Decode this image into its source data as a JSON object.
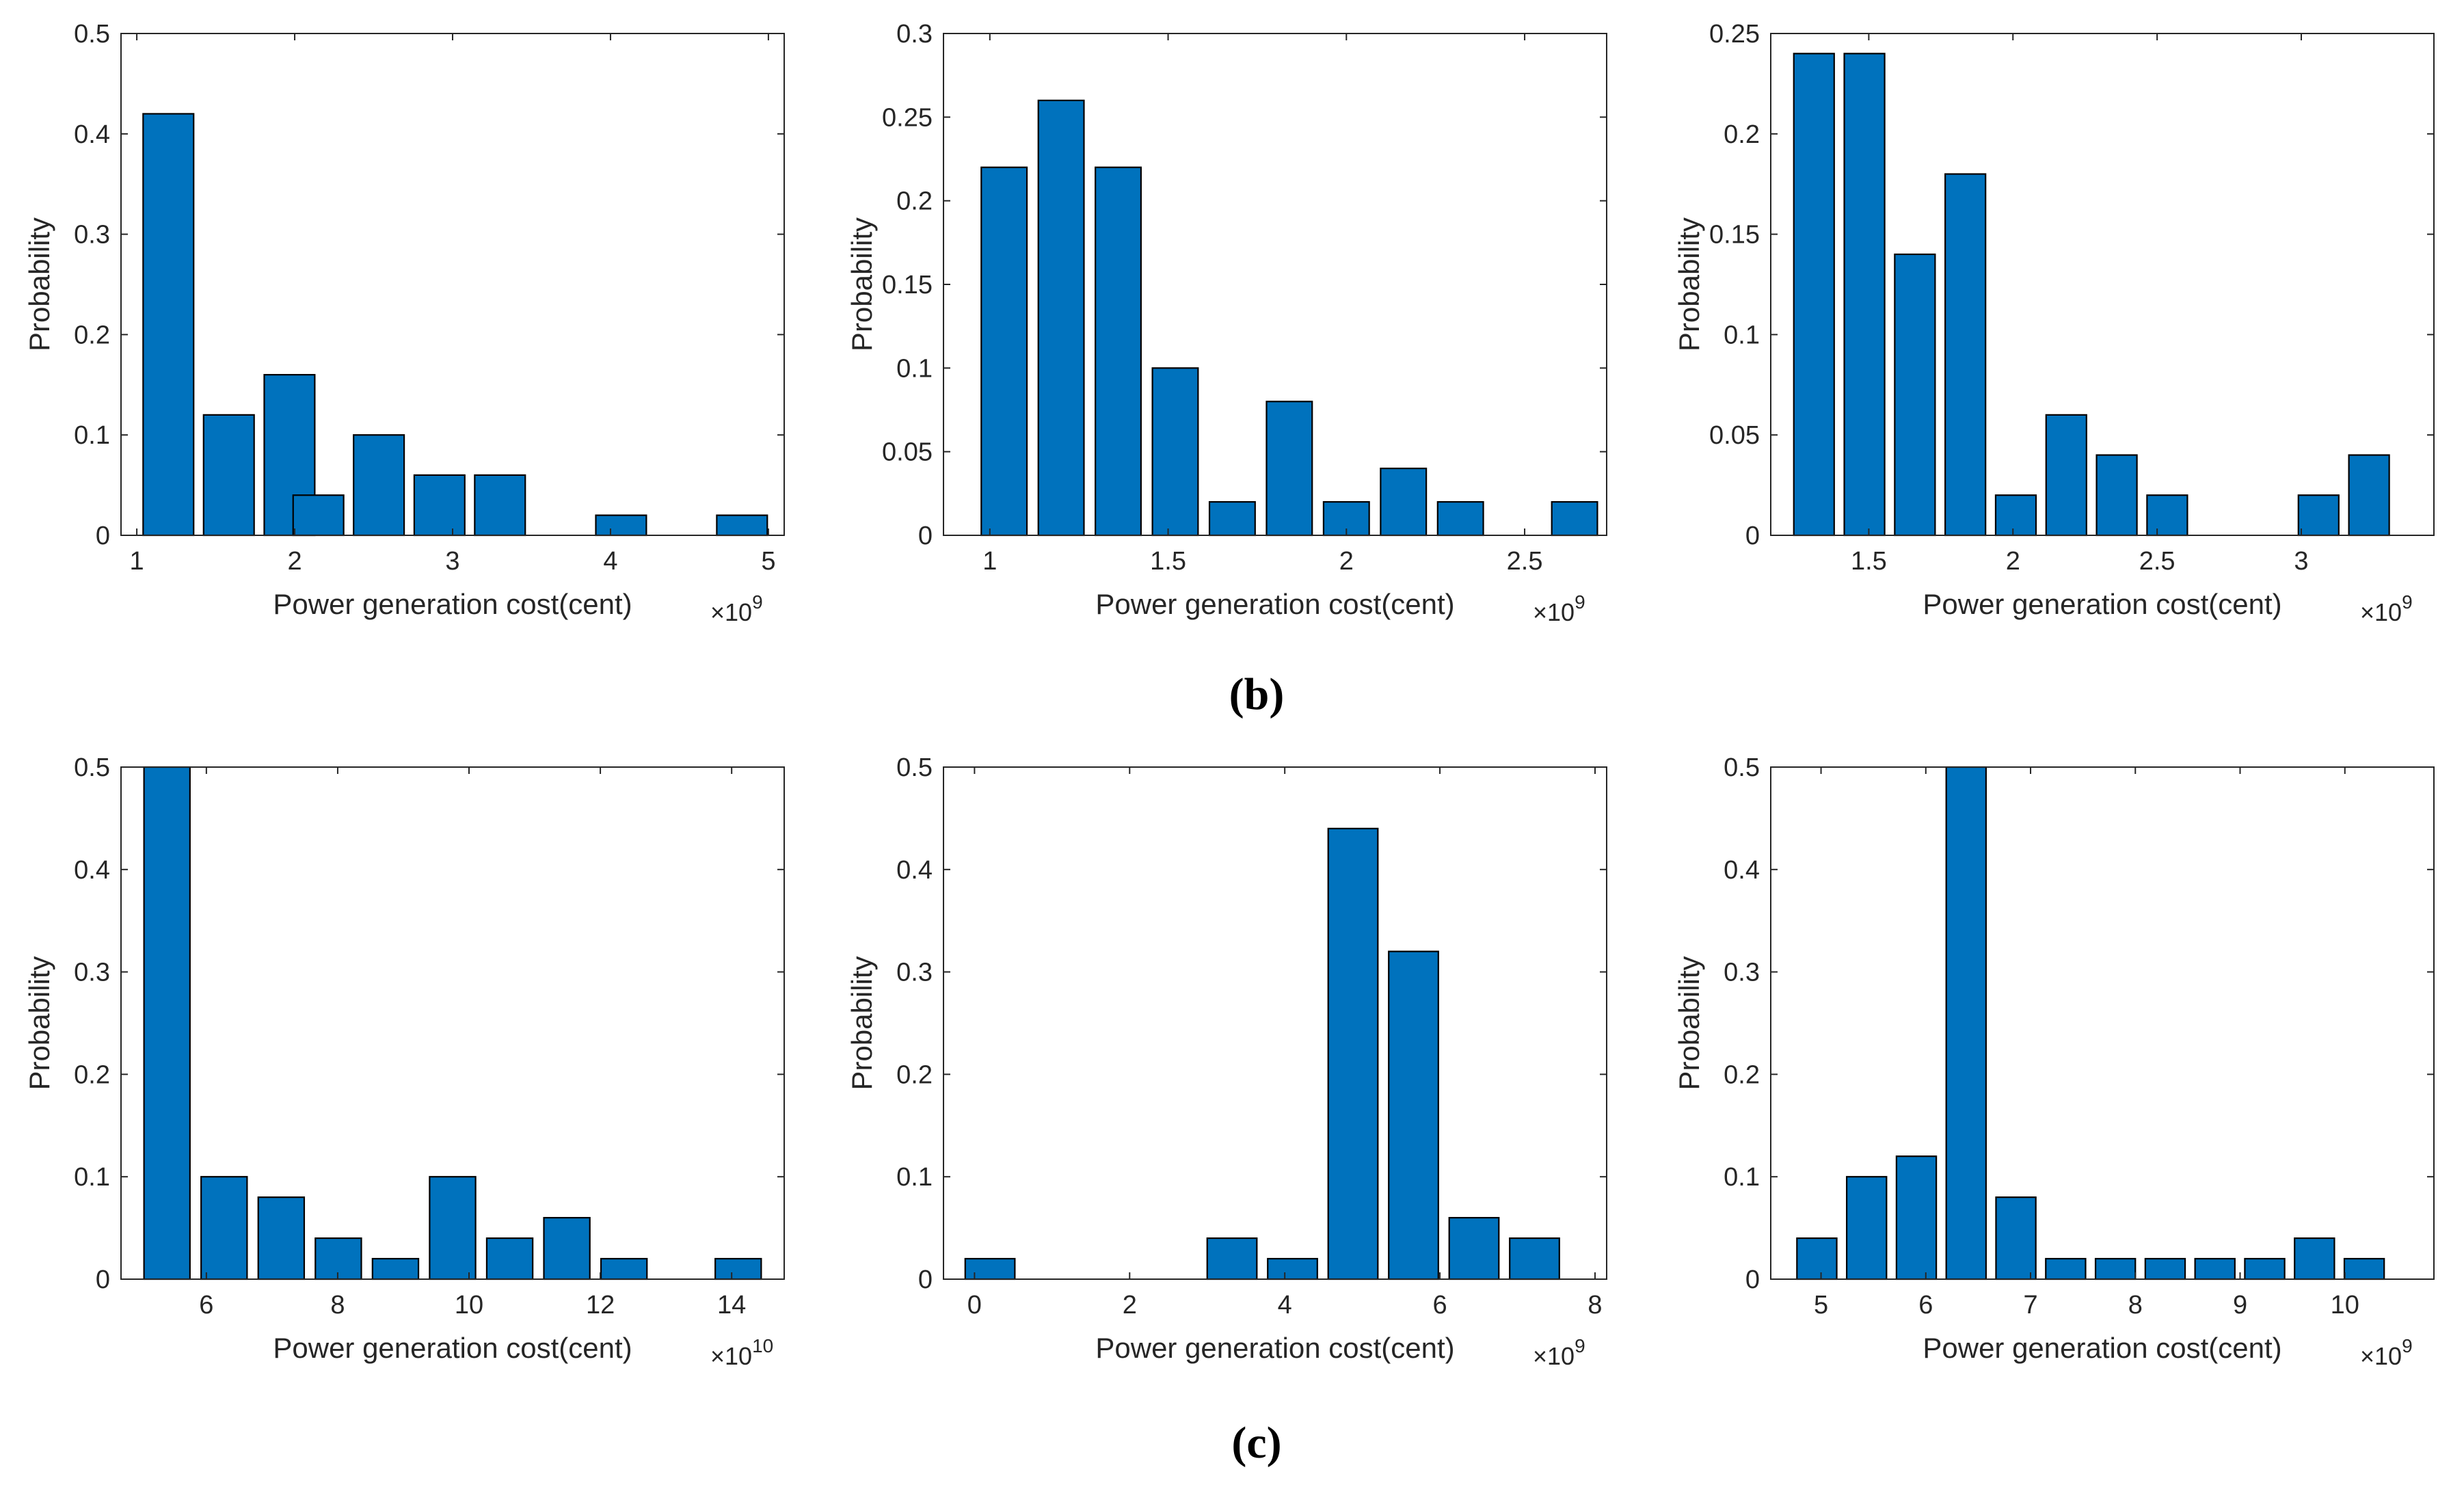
{
  "figure": {
    "panel_labels": [
      "(b)",
      "(c)"
    ]
  },
  "colors": {
    "bar": "#0072BD",
    "bar_edge": "#000000",
    "axis": "#262626"
  },
  "chart_data": [
    {
      "type": "bar",
      "panel": "(b)",
      "position": "left",
      "title": "",
      "xlabel": "Power generation cost(cent)",
      "ylabel": "Probability",
      "x_multiplier": "×10",
      "x_exponent": "9",
      "xlim": [
        0.9,
        5.1
      ],
      "ylim": [
        0,
        0.5
      ],
      "xticks": [
        1,
        2,
        3,
        4,
        5
      ],
      "xtick_labels": [
        "1",
        "2",
        "3",
        "4",
        "5"
      ],
      "yticks": [
        0,
        0.1,
        0.2,
        0.3,
        0.4,
        0.5
      ],
      "ytick_labels": [
        "0",
        "0.1",
        "0.2",
        "0.3",
        "0.4",
        "0.5"
      ],
      "bar_width": 0.32,
      "x": [
        1.2,
        1.583,
        1.967,
        2.15,
        2.533,
        2.917,
        3.3,
        3.683,
        4.067,
        4.45,
        4.833
      ],
      "values": [
        0.42,
        0.12,
        0.16,
        0.04,
        0.1,
        0.06,
        0.06,
        0.0,
        0.02,
        0.0,
        0.02
      ]
    },
    {
      "type": "bar",
      "panel": "(b)",
      "position": "middle",
      "title": "",
      "xlabel": "Power generation cost(cent)",
      "ylabel": "Probability",
      "x_multiplier": "×10",
      "x_exponent": "9",
      "xlim": [
        0.87,
        2.73
      ],
      "ylim": [
        0,
        0.3
      ],
      "xticks": [
        1,
        1.5,
        2,
        2.5
      ],
      "xtick_labels": [
        "1",
        "1.5",
        "2",
        "2.5"
      ],
      "yticks": [
        0,
        0.05,
        0.1,
        0.15,
        0.2,
        0.25,
        0.3
      ],
      "ytick_labels": [
        "0",
        "0.05",
        "0.1",
        "0.15",
        "0.2",
        "0.25",
        "0.3"
      ],
      "bar_width": 0.128,
      "x": [
        1.04,
        1.2,
        1.36,
        1.52,
        1.68,
        1.84,
        2.0,
        2.16,
        2.32,
        2.48,
        2.64
      ],
      "values": [
        0.22,
        0.26,
        0.22,
        0.1,
        0.02,
        0.08,
        0.02,
        0.04,
        0.02,
        0.0,
        0.02
      ]
    },
    {
      "type": "bar",
      "panel": "(b)",
      "position": "right",
      "title": "",
      "xlabel": "Power generation cost(cent)",
      "ylabel": "Probability",
      "x_multiplier": "×10",
      "x_exponent": "9",
      "xlim": [
        1.16,
        3.46
      ],
      "ylim": [
        0,
        0.25
      ],
      "xticks": [
        1.5,
        2,
        2.5,
        3
      ],
      "xtick_labels": [
        "1.5",
        "2",
        "2.5",
        "3"
      ],
      "yticks": [
        0,
        0.05,
        0.1,
        0.15,
        0.2,
        0.25
      ],
      "ytick_labels": [
        "0",
        "0.05",
        "0.1",
        "0.15",
        "0.2",
        "0.25"
      ],
      "bar_width": 0.14,
      "x": [
        1.31,
        1.485,
        1.66,
        1.835,
        2.01,
        2.185,
        2.36,
        2.535,
        2.71,
        2.885,
        3.06,
        3.235
      ],
      "values": [
        0.24,
        0.24,
        0.14,
        0.18,
        0.02,
        0.06,
        0.04,
        0.02,
        0.0,
        0.0,
        0.02,
        0.04
      ]
    },
    {
      "type": "bar",
      "panel": "(c)",
      "position": "left",
      "title": "",
      "xlabel": "Power generation cost(cent)",
      "ylabel": "Probability",
      "x_multiplier": "×10",
      "x_exponent": "10",
      "xlim": [
        4.7,
        14.8
      ],
      "ylim": [
        0,
        0.5
      ],
      "xticks": [
        6,
        8,
        10,
        12,
        14
      ],
      "xtick_labels": [
        "6",
        "8",
        "10",
        "12",
        "14"
      ],
      "yticks": [
        0,
        0.1,
        0.2,
        0.3,
        0.4,
        0.5
      ],
      "ytick_labels": [
        "0",
        "0.1",
        "0.2",
        "0.3",
        "0.4",
        "0.5"
      ],
      "bar_width": 0.7,
      "x": [
        5.4,
        6.27,
        7.14,
        8.01,
        8.88,
        9.75,
        10.62,
        11.49,
        12.36,
        13.23,
        14.1
      ],
      "values": [
        0.5,
        0.1,
        0.08,
        0.04,
        0.02,
        0.1,
        0.04,
        0.06,
        0.02,
        0.0,
        0.02
      ]
    },
    {
      "type": "bar",
      "panel": "(c)",
      "position": "middle",
      "title": "",
      "xlabel": "Power generation cost(cent)",
      "ylabel": "Probability",
      "x_multiplier": "×10",
      "x_exponent": "9",
      "xlim": [
        -0.4,
        8.15
      ],
      "ylim": [
        0,
        0.5
      ],
      "xticks": [
        0,
        2,
        4,
        6,
        8
      ],
      "xtick_labels": [
        "0",
        "2",
        "4",
        "6",
        "8"
      ],
      "yticks": [
        0,
        0.1,
        0.2,
        0.3,
        0.4,
        0.5
      ],
      "ytick_labels": [
        "0",
        "0.1",
        "0.2",
        "0.3",
        "0.4",
        "0.5"
      ],
      "bar_width": 0.64,
      "x": [
        0.2,
        0.98,
        1.76,
        2.54,
        3.32,
        4.1,
        4.88,
        5.66,
        6.44,
        7.22
      ],
      "values": [
        0.02,
        0.0,
        0.0,
        0.0,
        0.04,
        0.02,
        0.44,
        0.32,
        0.06,
        0.04
      ]
    },
    {
      "type": "bar",
      "panel": "(c)",
      "position": "right",
      "title": "",
      "xlabel": "Power generation cost(cent)",
      "ylabel": "Probability",
      "x_multiplier": "×10",
      "x_exponent": "9",
      "xlim": [
        4.52,
        10.85
      ],
      "ylim": [
        0,
        0.5
      ],
      "xticks": [
        5,
        6,
        7,
        8,
        9,
        10
      ],
      "xtick_labels": [
        "5",
        "6",
        "7",
        "8",
        "9",
        "10"
      ],
      "yticks": [
        0,
        0.1,
        0.2,
        0.3,
        0.4,
        0.5
      ],
      "ytick_labels": [
        "0",
        "0.1",
        "0.2",
        "0.3",
        "0.4",
        "0.5"
      ],
      "bar_width": 0.38,
      "x": [
        4.96,
        5.435,
        5.91,
        6.385,
        6.86,
        7.335,
        7.81,
        8.285,
        8.76,
        9.235,
        9.71,
        10.185
      ],
      "values": [
        0.04,
        0.1,
        0.12,
        0.5,
        0.08,
        0.02,
        0.02,
        0.02,
        0.02,
        0.02,
        0.04,
        0.02
      ]
    }
  ]
}
